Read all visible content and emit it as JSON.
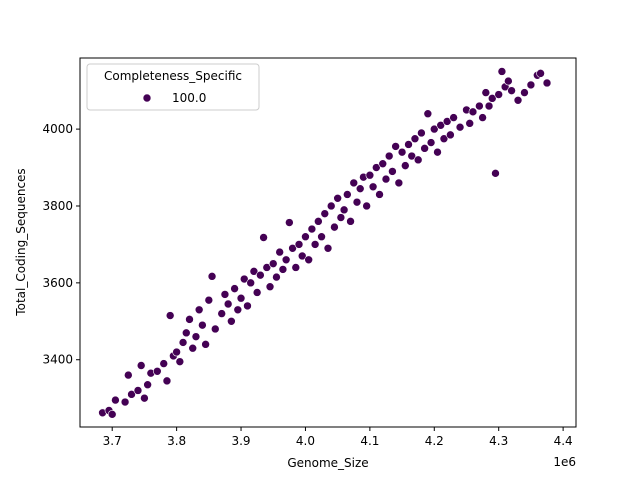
{
  "chart_data": {
    "type": "scatter",
    "title": "",
    "xlabel": "Genome_Size",
    "ylabel": "Total_Coding_Sequences",
    "x_offset_label": "1e6",
    "xlim": [
      3.65,
      4.42
    ],
    "ylim": [
      3225,
      4185
    ],
    "x_ticks": [
      3.7,
      3.8,
      3.9,
      4.0,
      4.1,
      4.2,
      4.3,
      4.4
    ],
    "x_tick_labels": [
      "3.7",
      "3.8",
      "3.9",
      "4.0",
      "4.1",
      "4.2",
      "4.3",
      "4.4"
    ],
    "y_ticks": [
      3400,
      3600,
      3800,
      4000
    ],
    "y_tick_labels": [
      "3400",
      "3600",
      "3800",
      "4000"
    ],
    "grid": false,
    "legend": {
      "title": "Completeness_Specific",
      "placement": "upper-left",
      "entries": [
        {
          "label": "100.0",
          "color": "#440154"
        }
      ]
    },
    "series": [
      {
        "name": "100.0",
        "color": "#440154",
        "points": [
          [
            3.685,
            3262
          ],
          [
            3.695,
            3268
          ],
          [
            3.7,
            3258
          ],
          [
            3.705,
            3295
          ],
          [
            3.72,
            3290
          ],
          [
            3.725,
            3360
          ],
          [
            3.73,
            3310
          ],
          [
            3.74,
            3320
          ],
          [
            3.745,
            3385
          ],
          [
            3.75,
            3300
          ],
          [
            3.755,
            3335
          ],
          [
            3.76,
            3365
          ],
          [
            3.77,
            3370
          ],
          [
            3.78,
            3390
          ],
          [
            3.785,
            3345
          ],
          [
            3.79,
            3515
          ],
          [
            3.795,
            3410
          ],
          [
            3.8,
            3420
          ],
          [
            3.805,
            3395
          ],
          [
            3.81,
            3445
          ],
          [
            3.815,
            3470
          ],
          [
            3.82,
            3505
          ],
          [
            3.825,
            3430
          ],
          [
            3.83,
            3460
          ],
          [
            3.835,
            3530
          ],
          [
            3.84,
            3490
          ],
          [
            3.845,
            3440
          ],
          [
            3.85,
            3555
          ],
          [
            3.855,
            3617
          ],
          [
            3.86,
            3480
          ],
          [
            3.87,
            3520
          ],
          [
            3.875,
            3570
          ],
          [
            3.88,
            3545
          ],
          [
            3.885,
            3500
          ],
          [
            3.89,
            3585
          ],
          [
            3.895,
            3530
          ],
          [
            3.9,
            3560
          ],
          [
            3.905,
            3610
          ],
          [
            3.91,
            3540
          ],
          [
            3.915,
            3600
          ],
          [
            3.92,
            3630
          ],
          [
            3.925,
            3575
          ],
          [
            3.93,
            3620
          ],
          [
            3.935,
            3718
          ],
          [
            3.94,
            3640
          ],
          [
            3.945,
            3590
          ],
          [
            3.95,
            3650
          ],
          [
            3.955,
            3615
          ],
          [
            3.96,
            3680
          ],
          [
            3.965,
            3635
          ],
          [
            3.97,
            3660
          ],
          [
            3.975,
            3757
          ],
          [
            3.98,
            3690
          ],
          [
            3.985,
            3640
          ],
          [
            3.99,
            3700
          ],
          [
            3.995,
            3670
          ],
          [
            4.0,
            3720
          ],
          [
            4.005,
            3660
          ],
          [
            4.01,
            3740
          ],
          [
            4.015,
            3700
          ],
          [
            4.02,
            3760
          ],
          [
            4.025,
            3720
          ],
          [
            4.03,
            3780
          ],
          [
            4.035,
            3690
          ],
          [
            4.04,
            3800
          ],
          [
            4.045,
            3745
          ],
          [
            4.05,
            3820
          ],
          [
            4.055,
            3770
          ],
          [
            4.06,
            3790
          ],
          [
            4.065,
            3830
          ],
          [
            4.07,
            3760
          ],
          [
            4.075,
            3860
          ],
          [
            4.08,
            3810
          ],
          [
            4.085,
            3845
          ],
          [
            4.09,
            3875
          ],
          [
            4.095,
            3800
          ],
          [
            4.1,
            3880
          ],
          [
            4.105,
            3850
          ],
          [
            4.11,
            3900
          ],
          [
            4.115,
            3830
          ],
          [
            4.12,
            3910
          ],
          [
            4.125,
            3870
          ],
          [
            4.13,
            3930
          ],
          [
            4.135,
            3890
          ],
          [
            4.14,
            3955
          ],
          [
            4.145,
            3860
          ],
          [
            4.15,
            3940
          ],
          [
            4.155,
            3905
          ],
          [
            4.16,
            3960
          ],
          [
            4.165,
            3930
          ],
          [
            4.17,
            3975
          ],
          [
            4.175,
            3920
          ],
          [
            4.18,
            3990
          ],
          [
            4.185,
            3950
          ],
          [
            4.19,
            4040
          ],
          [
            4.195,
            3965
          ],
          [
            4.2,
            4000
          ],
          [
            4.205,
            3940
          ],
          [
            4.21,
            4010
          ],
          [
            4.215,
            3975
          ],
          [
            4.22,
            4020
          ],
          [
            4.225,
            3985
          ],
          [
            4.23,
            4030
          ],
          [
            4.24,
            4005
          ],
          [
            4.25,
            4050
          ],
          [
            4.255,
            4015
          ],
          [
            4.26,
            4045
          ],
          [
            4.27,
            4060
          ],
          [
            4.275,
            4030
          ],
          [
            4.28,
            4095
          ],
          [
            4.285,
            4060
          ],
          [
            4.29,
            4080
          ],
          [
            4.295,
            3885
          ],
          [
            4.3,
            4090
          ],
          [
            4.305,
            4150
          ],
          [
            4.31,
            4110
          ],
          [
            4.315,
            4125
          ],
          [
            4.32,
            4100
          ],
          [
            4.33,
            4075
          ],
          [
            4.34,
            4095
          ],
          [
            4.35,
            4115
          ],
          [
            4.36,
            4140
          ],
          [
            4.365,
            4145
          ],
          [
            4.375,
            4120
          ]
        ]
      }
    ]
  }
}
